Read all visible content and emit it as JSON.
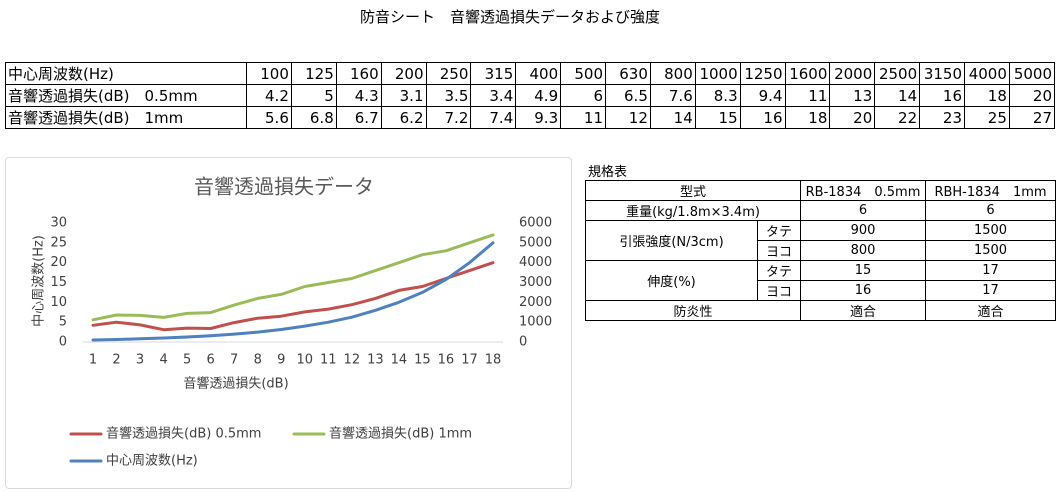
{
  "title": "防音シート　音響透過損失データおよび強度",
  "table": {
    "rows": [
      [
        "中心周波数(Hz)",
        100,
        125,
        160,
        200,
        250,
        315,
        400,
        500,
        630,
        800,
        1000,
        1250,
        1600,
        2000,
        2500,
        3150,
        4000,
        5000
      ],
      [
        "音響透過損失(dB)　0.5mm",
        4.2,
        5,
        4.3,
        3.1,
        3.5,
        3.4,
        4.9,
        6,
        6.5,
        7.6,
        8.3,
        9.4,
        11,
        13,
        14,
        16,
        18,
        20
      ],
      [
        "音響透過損失(dB)　1mm",
        5.6,
        6.8,
        6.7,
        6.2,
        7.2,
        7.4,
        9.3,
        11,
        12,
        14,
        15,
        16,
        18,
        20,
        22,
        23,
        25,
        27
      ]
    ]
  },
  "chart_data": {
    "type": "line",
    "title": "音響透過損失データ",
    "x_label": "音響透過損失(dB)",
    "y_label": "中心周波数(Hz)",
    "categories": [
      "1",
      "2",
      "3",
      "4",
      "5",
      "6",
      "7",
      "8",
      "9",
      "10",
      "11",
      "12",
      "13",
      "14",
      "15",
      "16",
      "17",
      "18"
    ],
    "ylim": [
      0,
      30
    ],
    "yticks": [
      0,
      5,
      10,
      15,
      20,
      25,
      30
    ],
    "y2lim": [
      0,
      6000
    ],
    "y2ticks": [
      0,
      1000,
      2000,
      3000,
      4000,
      5000,
      6000
    ],
    "series": [
      {
        "name": "音響透過損失(dB)  0.5mm",
        "color": "#c0504d",
        "values": [
          4.2,
          5,
          4.3,
          3.1,
          3.5,
          3.4,
          4.9,
          6,
          6.5,
          7.6,
          8.3,
          9.4,
          11,
          13,
          14,
          16,
          18,
          20
        ]
      },
      {
        "name": "音響透過損失(dB)  1mm",
        "color": "#9bbb59",
        "values": [
          5.6,
          6.8,
          6.7,
          6.2,
          7.2,
          7.4,
          9.3,
          11,
          12,
          14,
          15,
          16,
          18,
          20,
          22,
          23,
          25,
          27
        ]
      },
      {
        "name": "中心周波数(Hz)",
        "color": "#4f81bd",
        "axis": "y2",
        "values": [
          100,
          125,
          160,
          200,
          250,
          315,
          400,
          500,
          630,
          800,
          1000,
          1250,
          1600,
          2000,
          2500,
          3150,
          4000,
          5000
        ]
      }
    ]
  },
  "spec": {
    "title": "規格表",
    "header": [
      "型式",
      "RB-1834　0.5mm",
      "RBH-1834　1mm"
    ],
    "rows": [
      [
        "重量(kg/1.8m×3.4m)",
        6,
        6
      ],
      [
        "引張強度(N/3cm)",
        "タテ",
        900,
        1500
      ],
      [
        "ヨコ",
        800,
        1500
      ],
      [
        "伸度(%)",
        "タテ",
        15,
        17
      ],
      [
        "ヨコ",
        16,
        17
      ],
      [
        "防炎性",
        "適合",
        "適合"
      ]
    ]
  }
}
